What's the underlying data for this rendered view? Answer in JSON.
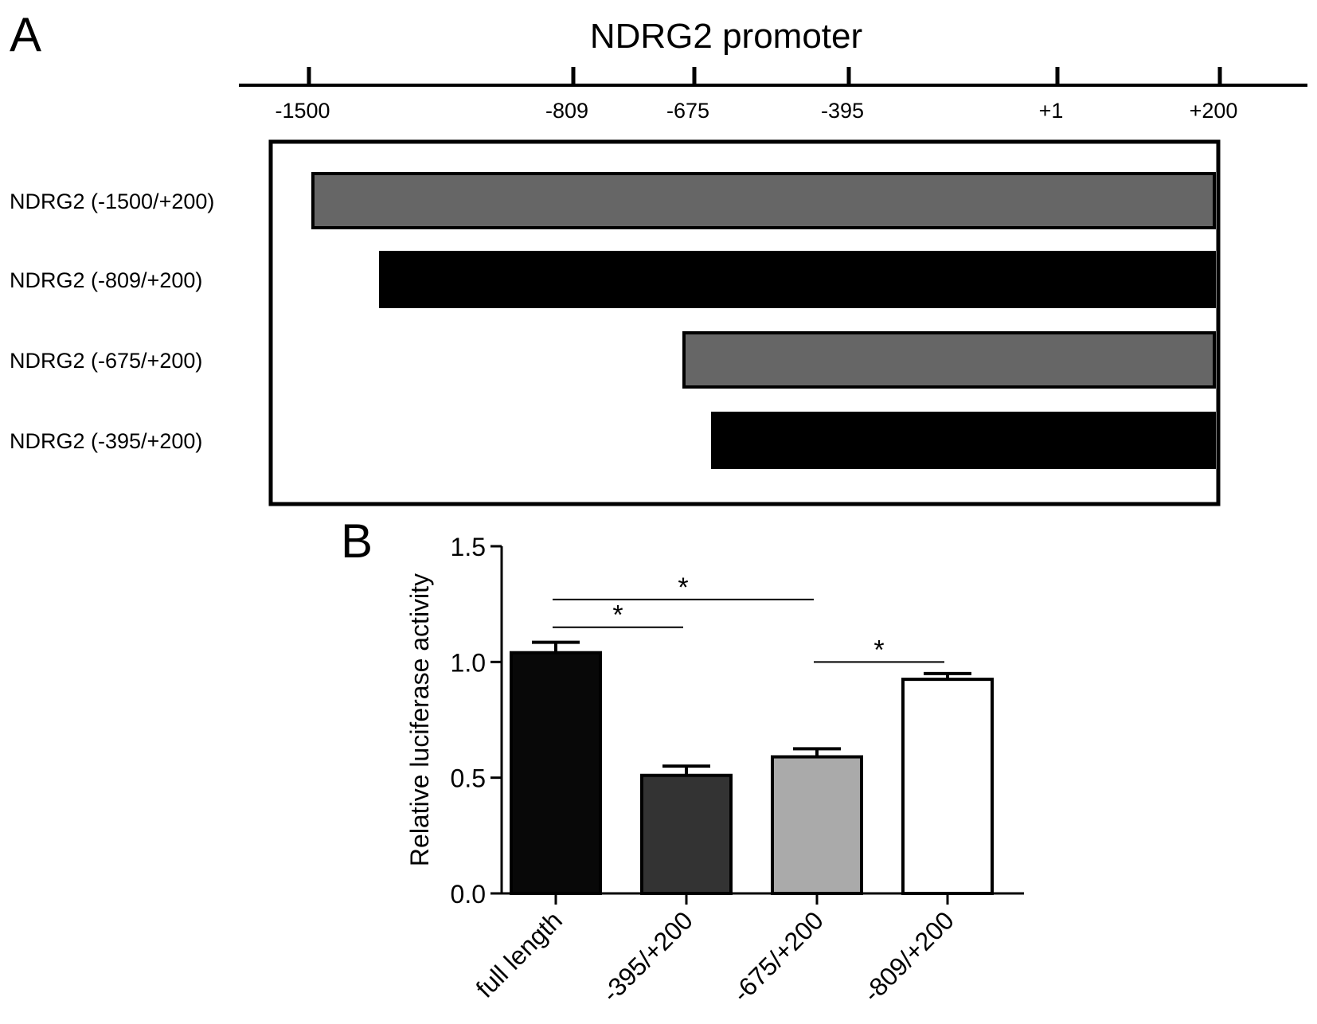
{
  "panel_a": {
    "letter": "A",
    "title": "NDRG2 promoter",
    "positions": [
      {
        "value": -1500,
        "label": "-1500"
      },
      {
        "value": -809,
        "label": "-809"
      },
      {
        "value": -675,
        "label": "-675"
      },
      {
        "value": -395,
        "label": "-395"
      },
      {
        "value": 1,
        "label": "+1"
      },
      {
        "value": 200,
        "label": "+200"
      }
    ],
    "constructs": [
      {
        "label": "NDRG2  (-1500/+200)",
        "start": -1500,
        "end": 200,
        "color": "#666666"
      },
      {
        "label": "NDRG2  (-809/+200)",
        "start": -809,
        "end": 200,
        "color": "#000000"
      },
      {
        "label": "NDRG2  (-675/+200)",
        "start": -675,
        "end": 200,
        "color": "#666666"
      },
      {
        "label": "NDRG2  (-395/+200)",
        "start": -395,
        "end": 200,
        "color": "#000000"
      }
    ]
  },
  "panel_b": {
    "letter": "B"
  },
  "chart_data": {
    "type": "bar",
    "categories": [
      "full length",
      "-395/+200",
      "-675/+200",
      "-809/+200"
    ],
    "values": [
      1.04,
      0.51,
      0.59,
      0.925
    ],
    "errors": [
      0.045,
      0.04,
      0.035,
      0.025
    ],
    "colors": [
      "#080808",
      "#333333",
      "#aaaaaa",
      "#ffffff"
    ],
    "ylabel": "Relative luciferase activity",
    "ylim": [
      0,
      1.5
    ],
    "yticks": [
      {
        "value": 0.0,
        "label": "0.0"
      },
      {
        "value": 0.5,
        "label": "0.5"
      },
      {
        "value": 1.0,
        "label": "1.0"
      },
      {
        "value": 1.5,
        "label": "1.5"
      }
    ],
    "significance": [
      {
        "from": 0,
        "to": 2,
        "label": "*",
        "level": 1.27
      },
      {
        "from": 0,
        "to": 1,
        "label": "*",
        "level": 1.15
      },
      {
        "from": 2,
        "to": 3,
        "label": "*",
        "level": 1.0
      }
    ],
    "grid": false,
    "legend": "none"
  }
}
